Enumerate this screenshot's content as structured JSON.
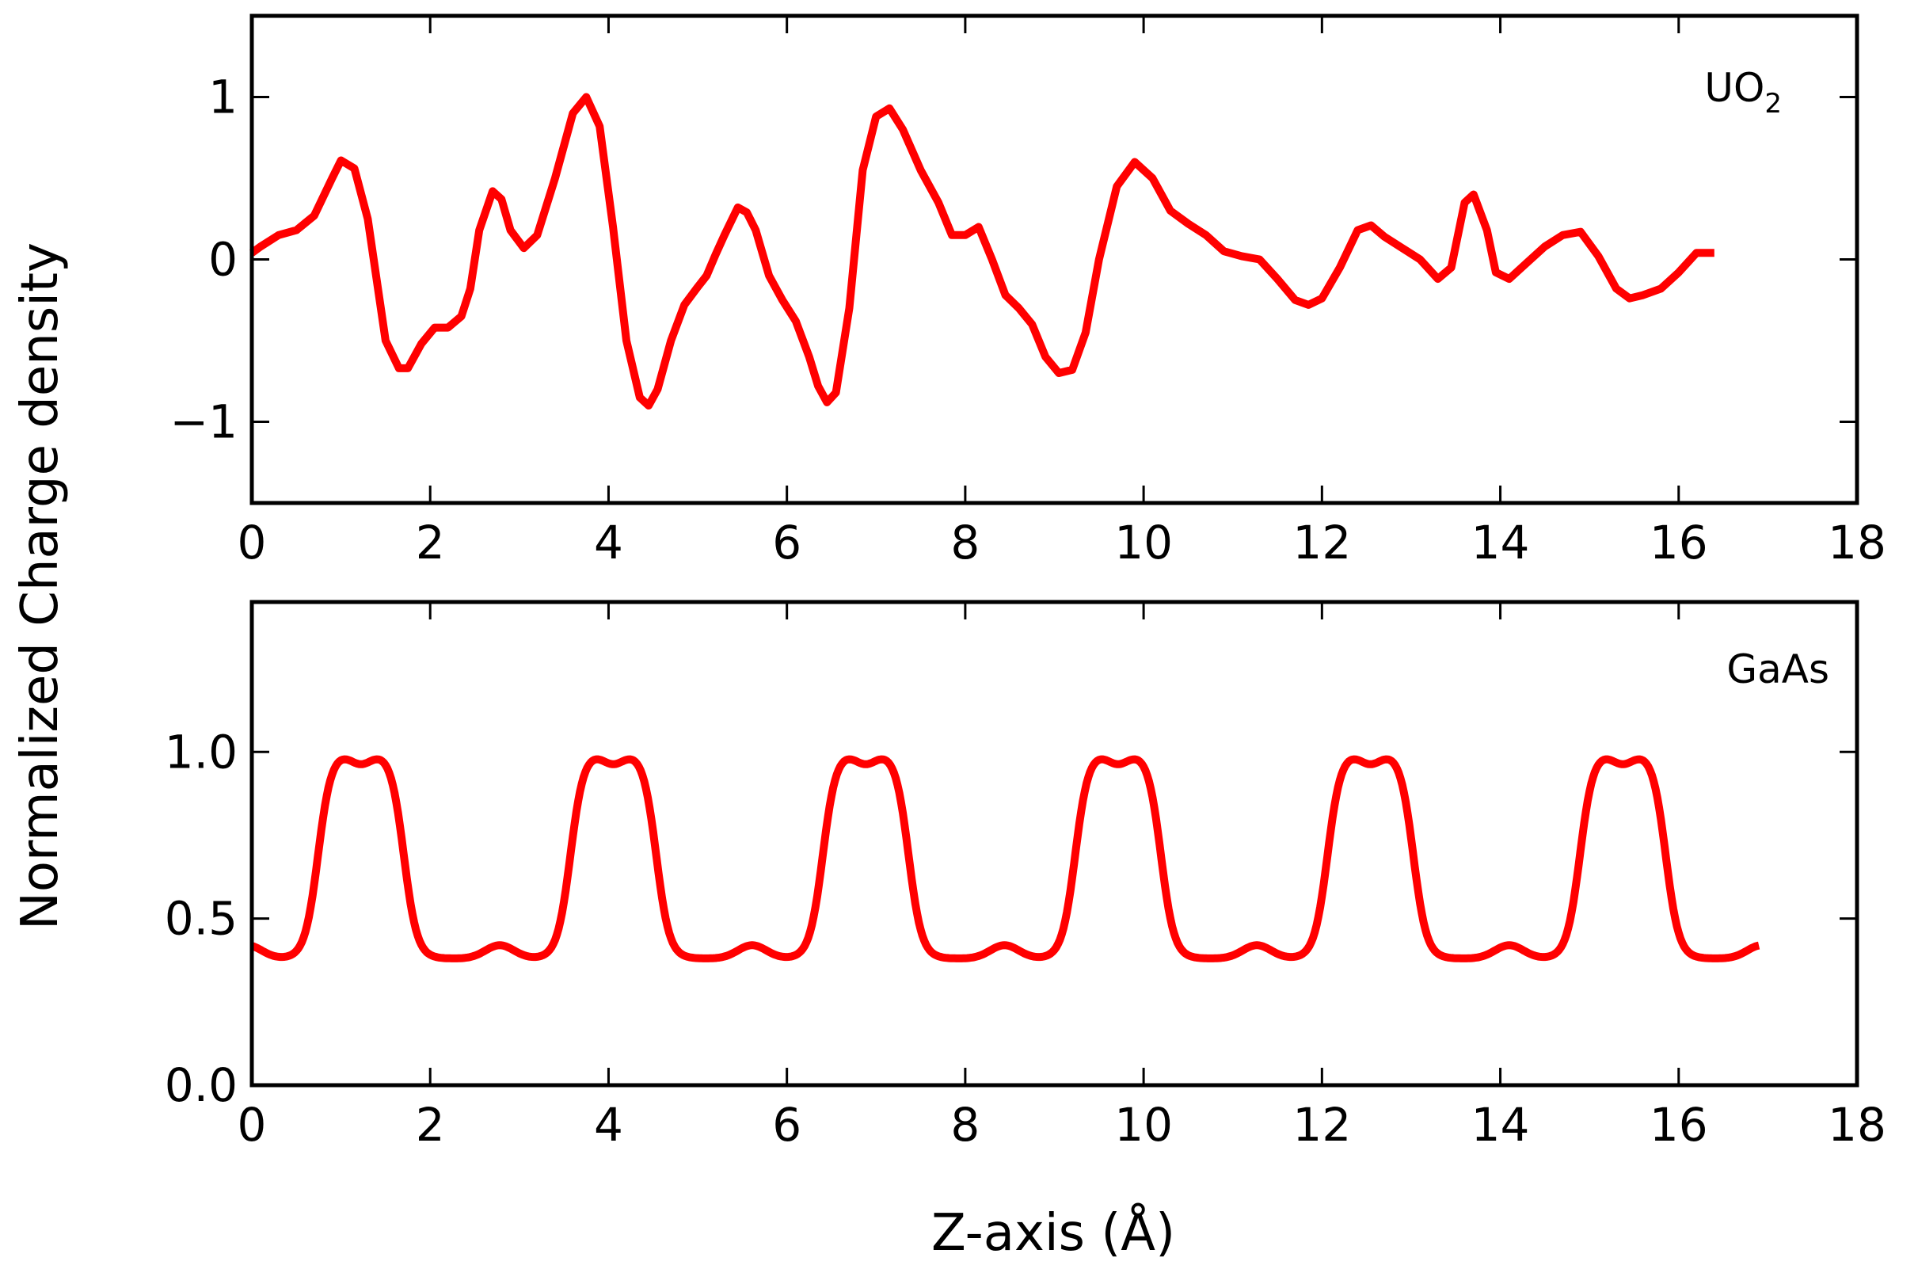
{
  "figure": {
    "ylabel": "Normalized Charge density",
    "xlabel": "Z-axis (Å)",
    "line_color": "#ff0000"
  },
  "chart_data": [
    {
      "type": "line",
      "label_main": "UO",
      "label_sub": "2",
      "xlim": [
        0,
        18
      ],
      "ylim": [
        -1.5,
        1.5
      ],
      "xticks": [
        0,
        2,
        4,
        6,
        8,
        10,
        12,
        14,
        16,
        18
      ],
      "yticks": [
        -1,
        0,
        1
      ],
      "ytick_labels": [
        "−1",
        "0",
        "1"
      ],
      "grid": false,
      "series": [
        {
          "color": "#ff0000",
          "x": [
            0.0,
            0.1,
            0.3,
            0.5,
            0.7,
            0.9,
            1.0,
            1.15,
            1.3,
            1.5,
            1.65,
            1.75,
            1.9,
            2.05,
            2.2,
            2.35,
            2.45,
            2.55,
            2.7,
            2.8,
            2.9,
            3.05,
            3.2,
            3.4,
            3.6,
            3.75,
            3.9,
            4.05,
            4.2,
            4.35,
            4.45,
            4.55,
            4.7,
            4.85,
            5.0,
            5.1,
            5.2,
            5.3,
            5.45,
            5.55,
            5.65,
            5.8,
            5.95,
            6.1,
            6.25,
            6.35,
            6.45,
            6.55,
            6.7,
            6.85,
            7.0,
            7.15,
            7.3,
            7.5,
            7.7,
            7.85,
            8.0,
            8.15,
            8.3,
            8.45,
            8.6,
            8.75,
            8.9,
            9.05,
            9.2,
            9.35,
            9.5,
            9.7,
            9.9,
            10.1,
            10.3,
            10.5,
            10.7,
            10.9,
            11.1,
            11.3,
            11.5,
            11.7,
            11.85,
            12.0,
            12.2,
            12.4,
            12.55,
            12.7,
            12.9,
            13.1,
            13.3,
            13.45,
            13.6,
            13.7,
            13.85,
            13.95,
            14.1,
            14.3,
            14.5,
            14.7,
            14.9,
            15.1,
            15.3,
            15.45,
            15.6,
            15.8,
            16.0,
            16.2,
            16.4
          ],
          "y": [
            0.04,
            0.08,
            0.15,
            0.18,
            0.27,
            0.5,
            0.61,
            0.56,
            0.25,
            -0.5,
            -0.67,
            -0.67,
            -0.52,
            -0.42,
            -0.42,
            -0.35,
            -0.18,
            0.18,
            0.42,
            0.37,
            0.18,
            0.07,
            0.15,
            0.5,
            0.9,
            1.0,
            0.82,
            0.2,
            -0.5,
            -0.85,
            -0.9,
            -0.8,
            -0.5,
            -0.28,
            -0.17,
            -0.1,
            0.03,
            0.15,
            0.32,
            0.29,
            0.18,
            -0.1,
            -0.25,
            -0.38,
            -0.6,
            -0.78,
            -0.88,
            -0.82,
            -0.3,
            0.55,
            0.88,
            0.93,
            0.8,
            0.55,
            0.35,
            0.15,
            0.15,
            0.2,
            0.0,
            -0.22,
            -0.3,
            -0.4,
            -0.6,
            -0.7,
            -0.68,
            -0.45,
            0.0,
            0.45,
            0.6,
            0.5,
            0.3,
            0.22,
            0.15,
            0.05,
            0.02,
            0.0,
            -0.12,
            -0.25,
            -0.28,
            -0.24,
            -0.05,
            0.18,
            0.21,
            0.14,
            0.07,
            0.0,
            -0.12,
            -0.05,
            0.35,
            0.4,
            0.18,
            -0.08,
            -0.12,
            -0.02,
            0.08,
            0.15,
            0.17,
            0.02,
            -0.18,
            -0.24,
            -0.22,
            -0.18,
            -0.08,
            0.04,
            0.04
          ]
        }
      ]
    },
    {
      "type": "line",
      "label_main": "GaAs",
      "label_sub": "",
      "xlim": [
        0,
        18
      ],
      "ylim": [
        0,
        1.45
      ],
      "xticks": [
        0,
        2,
        4,
        6,
        8,
        10,
        12,
        14,
        16,
        18
      ],
      "yticks": [
        0.0,
        0.5,
        1.0
      ],
      "ytick_labels": [
        "0.0",
        "0.5",
        "1.0"
      ],
      "grid": false,
      "series": [
        {
          "color": "#ff0000",
          "period": 2.83,
          "x_start": 0.0,
          "x_end": 16.9,
          "y_min": 0.38,
          "y_max": 1.0
        }
      ]
    }
  ]
}
